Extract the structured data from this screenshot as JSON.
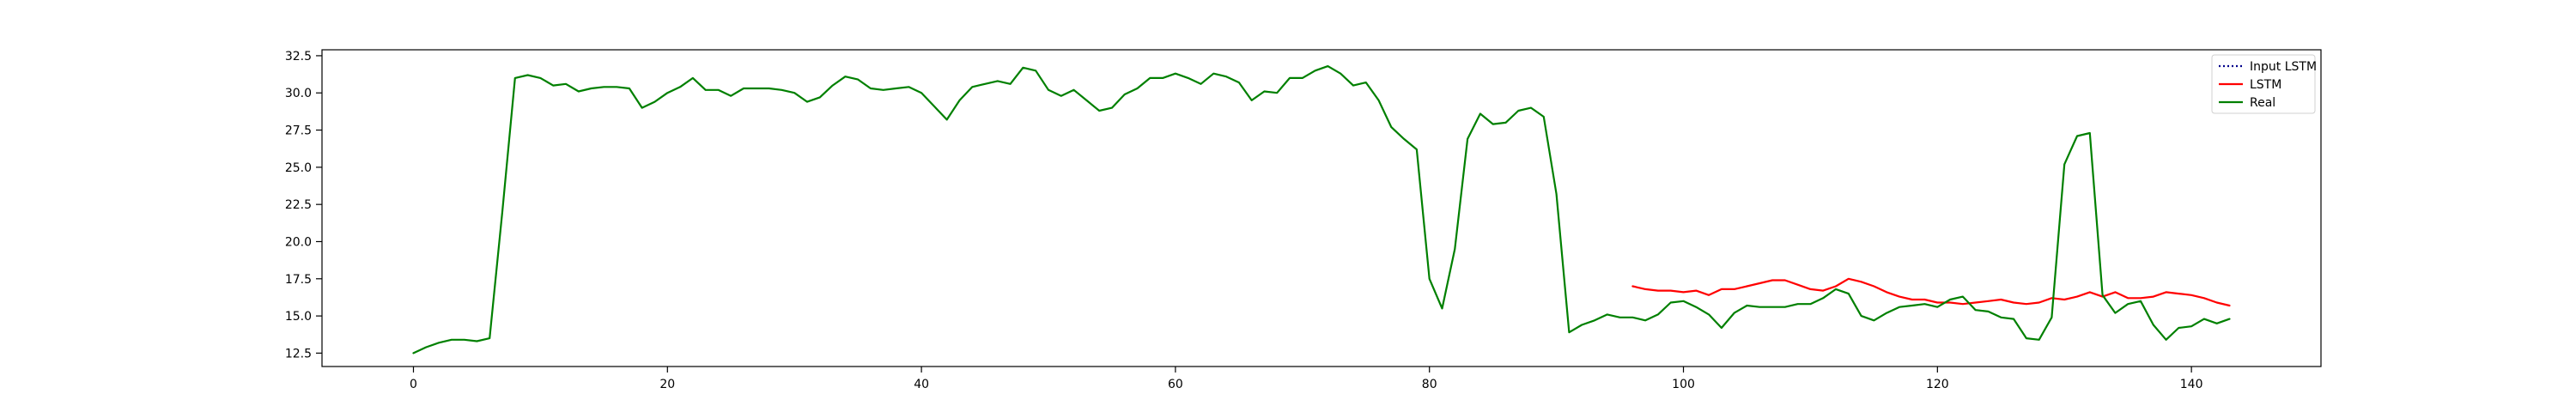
{
  "chart_data": {
    "type": "line",
    "title": "",
    "xlabel": "",
    "ylabel": "",
    "xlim": [
      -7.2,
      150.2
    ],
    "ylim": [
      11.6,
      32.9
    ],
    "xticks": [
      0,
      20,
      40,
      60,
      80,
      100,
      120,
      140
    ],
    "yticks": [
      12.5,
      15.0,
      17.5,
      20.0,
      22.5,
      25.0,
      27.5,
      30.0,
      32.5
    ],
    "xtick_labels": [
      "0",
      "20",
      "40",
      "60",
      "80",
      "100",
      "120",
      "140"
    ],
    "ytick_labels": [
      "12.5",
      "15.0",
      "17.5",
      "20.0",
      "22.5",
      "25.0",
      "27.5",
      "30.0",
      "32.5"
    ],
    "grid": false,
    "legend_position": "top-right",
    "series": [
      {
        "name": "Input LSTM",
        "color": "#00008b",
        "style": "dotted",
        "x": [
          0,
          1,
          2,
          3,
          4,
          5,
          6,
          7,
          8,
          9,
          10,
          11,
          12,
          13,
          14,
          15,
          16,
          17,
          18,
          19,
          20,
          21,
          22,
          23,
          24,
          25,
          26,
          27,
          28,
          29,
          30,
          31,
          32,
          33,
          34,
          35,
          36,
          37,
          38,
          39,
          40,
          41,
          42,
          43,
          44,
          45,
          46,
          47,
          48,
          49,
          50,
          51,
          52,
          53,
          54,
          55,
          56,
          57,
          58,
          59,
          60,
          61,
          62,
          63,
          64,
          65,
          66,
          67,
          68,
          69,
          70,
          71,
          72,
          73,
          74,
          75,
          76,
          77,
          78,
          79,
          80,
          81,
          82,
          83,
          84,
          85,
          86,
          87,
          88,
          89,
          90,
          91,
          92,
          93,
          94,
          95
        ],
        "values": [
          12.5,
          12.9,
          13.2,
          13.4,
          13.4,
          13.3,
          13.5,
          22.0,
          31.0,
          31.2,
          31.0,
          30.5,
          30.6,
          30.1,
          30.3,
          30.4,
          30.4,
          30.3,
          29.0,
          29.4,
          30.0,
          30.4,
          31.0,
          30.2,
          30.2,
          29.8,
          30.3,
          30.3,
          30.3,
          30.2,
          30.0,
          29.4,
          29.7,
          30.5,
          31.1,
          30.9,
          30.3,
          30.2,
          30.3,
          30.4,
          30.0,
          29.1,
          28.2,
          29.5,
          30.4,
          30.6,
          30.8,
          30.6,
          31.7,
          31.5,
          30.2,
          29.8,
          30.2,
          29.5,
          28.8,
          29.0,
          29.9,
          30.3,
          31.0,
          31.0,
          31.3,
          31.0,
          30.6,
          31.3,
          31.1,
          30.7,
          29.5,
          30.1,
          30.0,
          31.0,
          31.0,
          31.5,
          31.8,
          31.3,
          30.5,
          30.7,
          29.5,
          27.7,
          26.9,
          26.2,
          17.5,
          15.5,
          19.5,
          26.9,
          28.6,
          27.9,
          28.0,
          28.8,
          29.0,
          28.4,
          23.2,
          13.9,
          14.4,
          14.7,
          15.1,
          14.9
        ],
        "draw": false
      },
      {
        "name": "LSTM",
        "color": "#ff0000",
        "style": "solid",
        "x": [
          96,
          97,
          98,
          99,
          100,
          101,
          102,
          103,
          104,
          105,
          106,
          107,
          108,
          109,
          110,
          111,
          112,
          113,
          114,
          115,
          116,
          117,
          118,
          119,
          120,
          121,
          122,
          123,
          124,
          125,
          126,
          127,
          128,
          129,
          130,
          131,
          132,
          133,
          134,
          135,
          136,
          137,
          138,
          139,
          140,
          141,
          142,
          143
        ],
        "values": [
          17.0,
          16.8,
          16.7,
          16.7,
          16.6,
          16.7,
          16.4,
          16.8,
          16.8,
          17.0,
          17.2,
          17.4,
          17.4,
          17.1,
          16.8,
          16.7,
          17.0,
          17.5,
          17.3,
          17.0,
          16.6,
          16.3,
          16.1,
          16.1,
          15.9,
          15.9,
          15.8,
          15.9,
          16.0,
          16.1,
          15.9,
          15.8,
          15.9,
          16.2,
          16.1,
          16.3,
          16.6,
          16.3,
          16.6,
          16.2,
          16.2,
          16.3,
          16.6,
          16.5,
          16.4,
          16.2,
          15.9,
          15.7
        ]
      },
      {
        "name": "Real",
        "color": "#008000",
        "style": "solid",
        "x": [
          0,
          1,
          2,
          3,
          4,
          5,
          6,
          7,
          8,
          9,
          10,
          11,
          12,
          13,
          14,
          15,
          16,
          17,
          18,
          19,
          20,
          21,
          22,
          23,
          24,
          25,
          26,
          27,
          28,
          29,
          30,
          31,
          32,
          33,
          34,
          35,
          36,
          37,
          38,
          39,
          40,
          41,
          42,
          43,
          44,
          45,
          46,
          47,
          48,
          49,
          50,
          51,
          52,
          53,
          54,
          55,
          56,
          57,
          58,
          59,
          60,
          61,
          62,
          63,
          64,
          65,
          66,
          67,
          68,
          69,
          70,
          71,
          72,
          73,
          74,
          75,
          76,
          77,
          78,
          79,
          80,
          81,
          82,
          83,
          84,
          85,
          86,
          87,
          88,
          89,
          90,
          91,
          92,
          93,
          94,
          95,
          96,
          97,
          98,
          99,
          100,
          101,
          102,
          103,
          104,
          105,
          106,
          107,
          108,
          109,
          110,
          111,
          112,
          113,
          114,
          115,
          116,
          117,
          118,
          119,
          120,
          121,
          122,
          123,
          124,
          125,
          126,
          127,
          128,
          129,
          130,
          131,
          132,
          133,
          134,
          135,
          136,
          137,
          138,
          139,
          140,
          141,
          142,
          143
        ],
        "values": [
          12.5,
          12.9,
          13.2,
          13.4,
          13.4,
          13.3,
          13.5,
          22.0,
          31.0,
          31.2,
          31.0,
          30.5,
          30.6,
          30.1,
          30.3,
          30.4,
          30.4,
          30.3,
          29.0,
          29.4,
          30.0,
          30.4,
          31.0,
          30.2,
          30.2,
          29.8,
          30.3,
          30.3,
          30.3,
          30.2,
          30.0,
          29.4,
          29.7,
          30.5,
          31.1,
          30.9,
          30.3,
          30.2,
          30.3,
          30.4,
          30.0,
          29.1,
          28.2,
          29.5,
          30.4,
          30.6,
          30.8,
          30.6,
          31.7,
          31.5,
          30.2,
          29.8,
          30.2,
          29.5,
          28.8,
          29.0,
          29.9,
          30.3,
          31.0,
          31.0,
          31.3,
          31.0,
          30.6,
          31.3,
          31.1,
          30.7,
          29.5,
          30.1,
          30.0,
          31.0,
          31.0,
          31.5,
          31.8,
          31.3,
          30.5,
          30.7,
          29.5,
          27.7,
          26.9,
          26.2,
          17.5,
          15.5,
          19.5,
          26.9,
          28.6,
          27.9,
          28.0,
          28.8,
          29.0,
          28.4,
          23.2,
          13.9,
          14.4,
          14.7,
          15.1,
          14.9,
          14.9,
          14.7,
          15.1,
          15.9,
          16.0,
          15.6,
          15.1,
          14.2,
          15.2,
          15.7,
          15.6,
          15.6,
          15.6,
          15.8,
          15.8,
          16.2,
          16.8,
          16.5,
          15.0,
          14.7,
          15.2,
          15.6,
          15.7,
          15.8,
          15.6,
          16.1,
          16.3,
          15.4,
          15.3,
          14.9,
          14.8,
          13.5,
          13.4,
          14.9,
          25.2,
          27.1,
          27.3,
          16.4,
          15.2,
          15.8,
          16.0,
          14.4,
          13.4,
          14.2,
          14.3,
          14.8,
          14.5,
          14.8
        ]
      }
    ]
  }
}
